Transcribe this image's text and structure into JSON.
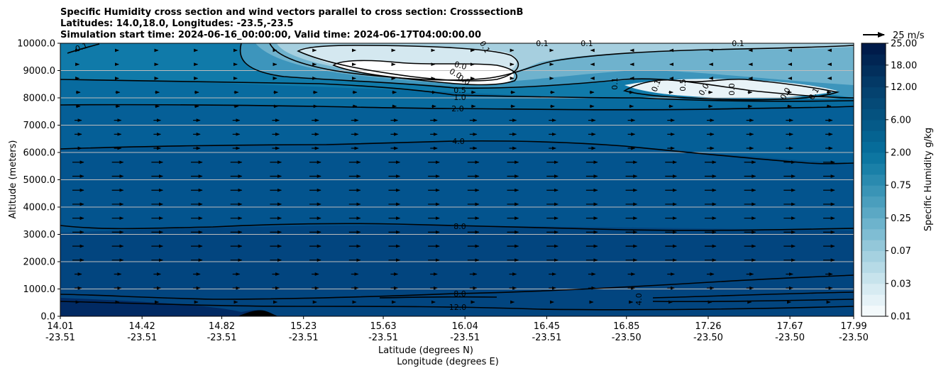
{
  "chart_data": {
    "type": "heatmap",
    "title_lines": [
      "Specific Humidity cross section and wind vectors parallel to cross section: CrosssectionB",
      "Latitudes: 14.0,18.0, Longitudes: -23.5,-23.5",
      "Simulation start time: 2024-06-16_00:00:00, Valid time: 2024-06-17T04:00:00.00"
    ],
    "ylabel": "Altitude (meters)",
    "xlabel_lines": [
      "Latitude (degrees N)",
      "Longitude (degrees E)"
    ],
    "ylim": [
      0,
      10000
    ],
    "yticks": [
      "0.0",
      "1000.0",
      "2000.0",
      "3000.0",
      "4000.0",
      "5000.0",
      "6000.0",
      "7000.0",
      "8000.0",
      "9000.0",
      "10000.0"
    ],
    "xticks": [
      {
        "lat": "14.01",
        "lon": "-23.51"
      },
      {
        "lat": "14.42",
        "lon": "-23.51"
      },
      {
        "lat": "14.82",
        "lon": "-23.51"
      },
      {
        "lat": "15.23",
        "lon": "-23.51"
      },
      {
        "lat": "15.63",
        "lon": "-23.51"
      },
      {
        "lat": "16.04",
        "lon": "-23.51"
      },
      {
        "lat": "16.45",
        "lon": "-23.51"
      },
      {
        "lat": "16.85",
        "lon": "-23.50"
      },
      {
        "lat": "17.26",
        "lon": "-23.50"
      },
      {
        "lat": "17.67",
        "lon": "-23.50"
      },
      {
        "lat": "17.99",
        "lon": "-23.50"
      }
    ],
    "grid": "horizontal",
    "colorbar": {
      "label": "Specific Humidity g/kg",
      "levels": [
        0.01,
        0.015,
        0.02,
        0.03,
        0.04,
        0.05,
        0.07,
        0.1,
        0.15,
        0.25,
        0.35,
        0.5,
        0.75,
        1.0,
        1.5,
        2.0,
        3.0,
        4.0,
        6.0,
        8.0,
        10.0,
        12.0,
        15.0,
        18.0,
        21.0,
        25.0
      ],
      "tick_labels": [
        "0.01",
        "0.03",
        "0.07",
        "0.25",
        "0.75",
        "2.00",
        "6.00",
        "12.00",
        "18.00",
        "25.00"
      ]
    },
    "quiver_key": "25 m/s",
    "contour_labels": [
      "0.1",
      "0.1",
      "0.1",
      "0.1",
      "0.1",
      "0.0",
      "0.0",
      "0.0",
      "0.5",
      "1.0",
      "2.0",
      "4.0",
      "8.0",
      "8.0",
      "4.0",
      "12.0",
      "0.1",
      "0.1",
      "0.5",
      "0.0",
      "0.0",
      "0.0",
      "0.1"
    ],
    "colors": {
      "very_dry": "#ffffff",
      "mid": "#5ba8c4",
      "moist": "#0a6a9a",
      "very_moist": "#033b73"
    }
  }
}
